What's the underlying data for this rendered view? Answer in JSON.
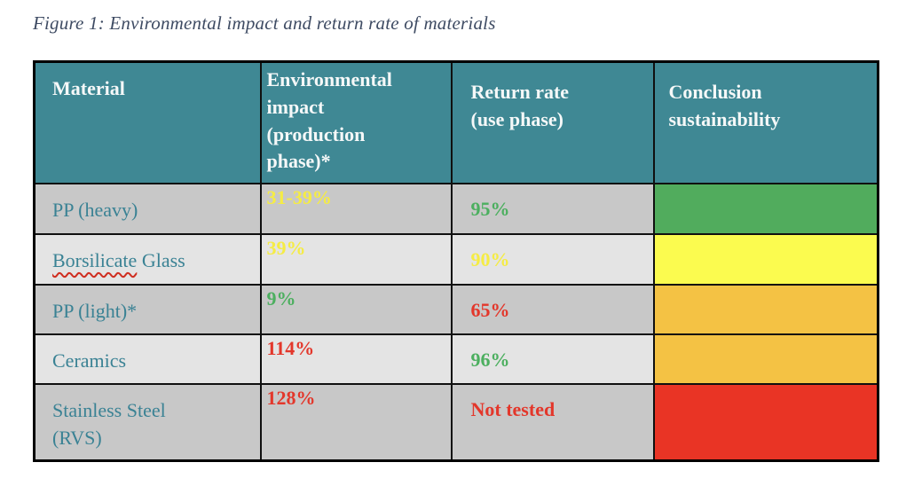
{
  "caption": "Figure 1: Environmental impact and return rate of materials",
  "palette": {
    "header_bg": "#3f8894",
    "header_text": "#f5f8f8",
    "caption_text": "#3e4b63",
    "material_text": "#3a8294",
    "border_black": "#101010",
    "row_bg_dark": "#c8c8c8",
    "row_bg_light": "#e4e4e4",
    "spellcheck_squiggle": "#cf2e20",
    "value_yellow": "#f5ec44",
    "value_green": "#4caf5f",
    "value_red": "#e3372b",
    "conclusion_green": "#51ac5d",
    "conclusion_yellow": "#fbfb4f",
    "conclusion_orange": "#f4c244",
    "conclusion_red": "#e93425"
  },
  "table": {
    "headers": {
      "material": "Material",
      "impact": "Environmental\nimpact\n(production\nphase)*",
      "return_rate": "Return rate\n(use phase)",
      "conclusion": "Conclusion\nsustainability"
    },
    "rows": [
      {
        "material": "PP (heavy)",
        "impact": "31-39%",
        "impact_color": "#f5ec44",
        "return_rate": "95%",
        "return_color": "#4caf5f",
        "conclusion_bg": "#51ac5d",
        "bg": "#c8c8c8"
      },
      {
        "material_misspelled": "Borsilicate",
        "material_rest": " Glass",
        "impact": "39%",
        "impact_color": "#f5ec44",
        "return_rate": "90%",
        "return_color": "#f5ec44",
        "conclusion_bg": "#fbfb4f",
        "bg": "#e4e4e4"
      },
      {
        "material": "PP (light)*",
        "impact": "9%",
        "impact_color": "#4caf5f",
        "return_rate": "65%",
        "return_color": "#e3372b",
        "conclusion_bg": "#f4c244",
        "bg": "#c8c8c8"
      },
      {
        "material": "Ceramics",
        "impact": "114%",
        "impact_color": "#e3372b",
        "return_rate": "96%",
        "return_color": "#4caf5f",
        "conclusion_bg": "#f4c244",
        "bg": "#e4e4e4"
      },
      {
        "material": "Stainless Steel\n(RVS)",
        "impact": "128%",
        "impact_color": "#e3372b",
        "return_rate": "Not tested",
        "return_color": "#e3372b",
        "conclusion_bg": "#e93425",
        "bg": "#c8c8c8"
      }
    ]
  }
}
